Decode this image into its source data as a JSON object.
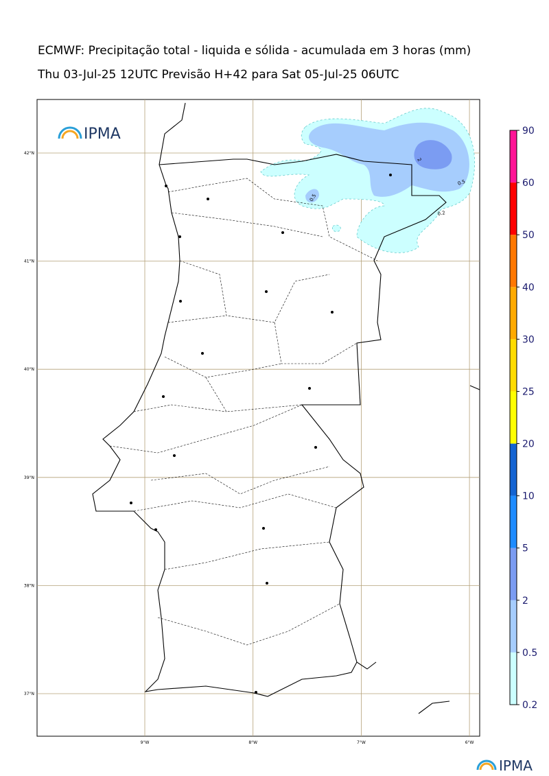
{
  "header": {
    "title": "ECMWF: Precipitação total - liquida e sólida - acumulada em 3 horas (mm)",
    "subtitle": "Thu 03-Jul-25 12UTC Previsão H+42 para Sat 05-Jul-25 06UTC"
  },
  "map": {
    "lat_labels": [
      "42°N",
      "41°N",
      "40°N",
      "39°N",
      "38°N",
      "37°N"
    ],
    "lon_labels": [
      "9°W",
      "8°W",
      "7°W",
      "6°W"
    ],
    "contour_labels": [
      "2",
      "0.5",
      "0.5",
      "0.2"
    ]
  },
  "colorbar": {
    "ticks": [
      0.2,
      0.5,
      2,
      5,
      10,
      20,
      25,
      30,
      40,
      50,
      60,
      90
    ],
    "colors": [
      "#ccffff",
      "#a6cdfd",
      "#7b9cf2",
      "#1e8cff",
      "#1464d2",
      "#ffff00",
      "#ffdc00",
      "#ffaa00",
      "#ff7800",
      "#ff0000",
      "#ff1496"
    ]
  },
  "logos": {
    "top": "IPMA",
    "bottom": "IPMA"
  }
}
